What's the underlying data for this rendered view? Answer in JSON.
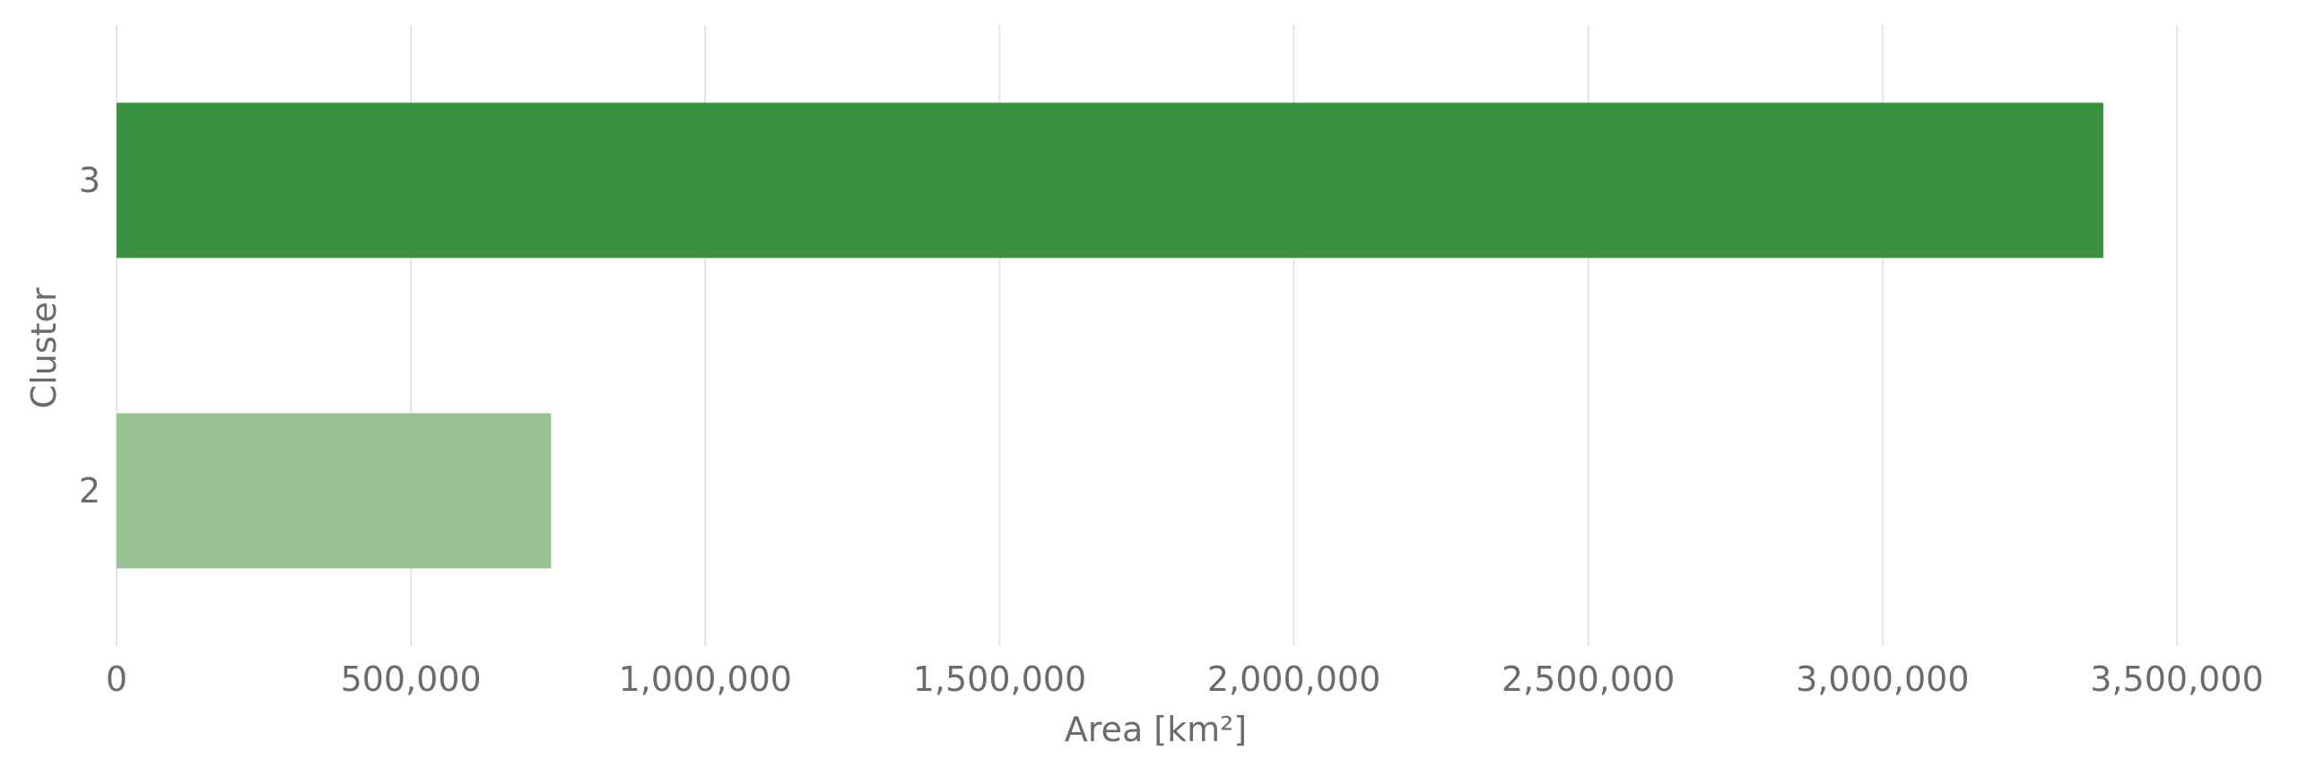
{
  "chart_data": {
    "type": "bar",
    "orientation": "horizontal",
    "categories": [
      "3",
      "2"
    ],
    "values": [
      3375000,
      738000
    ],
    "colors": [
      "#3a9140",
      "#98c294"
    ],
    "xlabel": "Area [km²]",
    "ylabel": "Cluster",
    "xlim": [
      0,
      3500000
    ],
    "xticks": [
      0,
      500000,
      1000000,
      1500000,
      2000000,
      2500000,
      3000000,
      3500000
    ],
    "xtick_labels": [
      "0",
      "500,000",
      "1,000,000",
      "1,500,000",
      "2,000,000",
      "2,500,000",
      "3,000,000",
      "3,500,000"
    ],
    "grid": "vertical",
    "legend": "none"
  }
}
